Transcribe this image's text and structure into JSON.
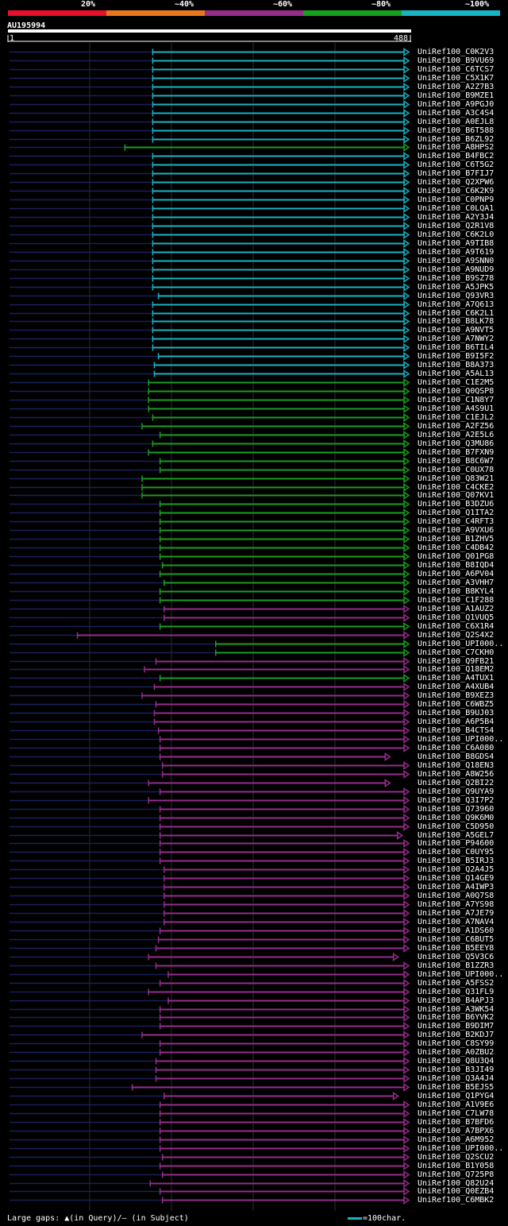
{
  "query": "AU195994",
  "identity_bins": [
    {
      "label": "20%",
      "color": "#e8102a"
    },
    {
      "label": "~40%",
      "color": "#e8781e"
    },
    {
      "label": "~60%",
      "color": "#962d8c"
    },
    {
      "label": "~80%",
      "color": "#19a01e"
    },
    {
      "label": "~100%",
      "color": "#19b4c3"
    }
  ],
  "legend": {
    "gaps": "Large gaps: ▲(in Query)/– (in Subject)",
    "scale": "=100char."
  },
  "chart_data": {
    "type": "alignment",
    "title": "AU195994",
    "xlim": [
      1,
      488
    ],
    "x_tick_labels": [
      "1",
      "488"
    ],
    "colors": {
      "cyan": "#19b4c3",
      "green": "#19a01e",
      "purple": "#962d8c",
      "navy": "#1a1f5a"
    },
    "hits": [
      {
        "name": "UniRef100_C0K2V3",
        "start": 176,
        "end": 488,
        "cat": "cyan",
        "arrow": "right"
      },
      {
        "name": "UniRef100_B9VU69",
        "start": 176,
        "end": 488,
        "cat": "cyan",
        "arrow": "right"
      },
      {
        "name": "UniRef100_C6TCS7",
        "start": 176,
        "end": 488,
        "cat": "cyan",
        "arrow": "right"
      },
      {
        "name": "UniRef100_C5X1K7",
        "start": 176,
        "end": 488,
        "cat": "cyan",
        "arrow": "right"
      },
      {
        "name": "UniRef100_A2Z7B3",
        "start": 176,
        "end": 488,
        "cat": "cyan",
        "arrow": "right"
      },
      {
        "name": "UniRef100_B9MZE1",
        "start": 176,
        "end": 488,
        "cat": "cyan",
        "arrow": "right"
      },
      {
        "name": "UniRef100_A9PGJ0",
        "start": 176,
        "end": 488,
        "cat": "cyan",
        "arrow": "right"
      },
      {
        "name": "UniRef100_A3C4S4",
        "start": 176,
        "end": 488,
        "cat": "cyan",
        "arrow": "right"
      },
      {
        "name": "UniRef100_A0EJL8",
        "start": 176,
        "end": 488,
        "cat": "cyan",
        "arrow": "right"
      },
      {
        "name": "UniRef100_B6T588",
        "start": 176,
        "end": 488,
        "cat": "cyan",
        "arrow": "right"
      },
      {
        "name": "UniRef100_B6ZL92",
        "start": 176,
        "end": 488,
        "cat": "cyan",
        "arrow": "right"
      },
      {
        "name": "UniRef100_A8HPS2",
        "start": 142,
        "end": 488,
        "cat": "green",
        "arrow": "right"
      },
      {
        "name": "UniRef100_B4FBC2",
        "start": 176,
        "end": 488,
        "cat": "cyan",
        "arrow": "right"
      },
      {
        "name": "UniRef100_C6T5G2",
        "start": 176,
        "end": 488,
        "cat": "cyan",
        "arrow": "right"
      },
      {
        "name": "UniRef100_B7FIJ7",
        "start": 176,
        "end": 488,
        "cat": "cyan",
        "arrow": "right"
      },
      {
        "name": "UniRef100_Q2XPW6",
        "start": 176,
        "end": 488,
        "cat": "cyan",
        "arrow": "right"
      },
      {
        "name": "UniRef100_C6K2K9",
        "start": 176,
        "end": 488,
        "cat": "cyan",
        "arrow": "right"
      },
      {
        "name": "UniRef100_C0PNP9",
        "start": 176,
        "end": 488,
        "cat": "cyan",
        "arrow": "right"
      },
      {
        "name": "UniRef100_C0LQA1",
        "start": 176,
        "end": 488,
        "cat": "cyan",
        "arrow": "right"
      },
      {
        "name": "UniRef100_A2Y3J4",
        "start": 176,
        "end": 488,
        "cat": "cyan",
        "arrow": "right"
      },
      {
        "name": "UniRef100_Q2R1V8",
        "start": 176,
        "end": 488,
        "cat": "cyan",
        "arrow": "right"
      },
      {
        "name": "UniRef100_C6K2L0",
        "start": 176,
        "end": 488,
        "cat": "cyan",
        "arrow": "right"
      },
      {
        "name": "UniRef100_A9TIB8",
        "start": 176,
        "end": 488,
        "cat": "cyan",
        "arrow": "right"
      },
      {
        "name": "UniRef100_A9T619",
        "start": 176,
        "end": 488,
        "cat": "cyan",
        "arrow": "right"
      },
      {
        "name": "UniRef100_A9SNN0",
        "start": 176,
        "end": 488,
        "cat": "cyan",
        "arrow": "right"
      },
      {
        "name": "UniRef100_A9NUD9",
        "start": 176,
        "end": 488,
        "cat": "cyan",
        "arrow": "right"
      },
      {
        "name": "UniRef100_B9SZ78",
        "start": 176,
        "end": 488,
        "cat": "cyan",
        "arrow": "right"
      },
      {
        "name": "UniRef100_A5JPK5",
        "start": 176,
        "end": 488,
        "cat": "cyan",
        "arrow": "right"
      },
      {
        "name": "UniRef100_Q93VR3",
        "start": 183,
        "end": 488,
        "cat": "cyan",
        "arrow": "right"
      },
      {
        "name": "UniRef100_A7Q613",
        "start": 176,
        "end": 488,
        "cat": "cyan",
        "arrow": "right"
      },
      {
        "name": "UniRef100_C6K2L1",
        "start": 176,
        "end": 488,
        "cat": "cyan",
        "arrow": "right"
      },
      {
        "name": "UniRef100_B8LK78",
        "start": 176,
        "end": 488,
        "cat": "cyan",
        "arrow": "right"
      },
      {
        "name": "UniRef100_A9NVT5",
        "start": 176,
        "end": 488,
        "cat": "cyan",
        "arrow": "right"
      },
      {
        "name": "UniRef100_A7NWY2",
        "start": 176,
        "end": 488,
        "cat": "cyan",
        "arrow": "right"
      },
      {
        "name": "UniRef100_B6TIL4",
        "start": 176,
        "end": 488,
        "cat": "cyan",
        "arrow": "right"
      },
      {
        "name": "UniRef100_B9I5F2",
        "start": 183,
        "end": 488,
        "cat": "cyan",
        "arrow": "right"
      },
      {
        "name": "UniRef100_B8A373",
        "start": 178,
        "end": 488,
        "cat": "cyan",
        "arrow": "right"
      },
      {
        "name": "UniRef100_A5AL13",
        "start": 178,
        "end": 488,
        "cat": "cyan",
        "arrow": "right"
      },
      {
        "name": "UniRef100_C1E2M5",
        "start": 171,
        "end": 488,
        "cat": "green",
        "arrow": "right"
      },
      {
        "name": "UniRef100_Q0QSP8",
        "start": 171,
        "end": 488,
        "cat": "green",
        "arrow": "right"
      },
      {
        "name": "UniRef100_C1N8Y7",
        "start": 171,
        "end": 488,
        "cat": "green",
        "arrow": "right"
      },
      {
        "name": "UniRef100_A4S9U1",
        "start": 171,
        "end": 488,
        "cat": "green",
        "arrow": "right"
      },
      {
        "name": "UniRef100_C1EJL2",
        "start": 176,
        "end": 488,
        "cat": "green",
        "arrow": "right"
      },
      {
        "name": "UniRef100_A2FZ56",
        "start": 163,
        "end": 488,
        "cat": "green",
        "arrow": "right"
      },
      {
        "name": "UniRef100_A2E5L6",
        "start": 185,
        "end": 488,
        "cat": "green",
        "arrow": "right"
      },
      {
        "name": "UniRef100_Q3MU86",
        "start": 176,
        "end": 488,
        "cat": "green",
        "arrow": "right"
      },
      {
        "name": "UniRef100_B7FXN9",
        "start": 171,
        "end": 488,
        "cat": "green",
        "arrow": "right"
      },
      {
        "name": "UniRef100_B8C6W7",
        "start": 185,
        "end": 488,
        "cat": "green",
        "arrow": "right"
      },
      {
        "name": "UniRef100_C0UX78",
        "start": 185,
        "end": 488,
        "cat": "green",
        "arrow": "right"
      },
      {
        "name": "UniRef100_Q83W21",
        "start": 163,
        "end": 488,
        "cat": "green",
        "arrow": "right"
      },
      {
        "name": "UniRef100_C4CKE2",
        "start": 163,
        "end": 488,
        "cat": "green",
        "arrow": "right"
      },
      {
        "name": "UniRef100_Q07KV1",
        "start": 163,
        "end": 488,
        "cat": "green",
        "arrow": "right"
      },
      {
        "name": "UniRef100_B3DZU6",
        "start": 185,
        "end": 488,
        "cat": "green",
        "arrow": "right"
      },
      {
        "name": "UniRef100_Q1ITA2",
        "start": 185,
        "end": 488,
        "cat": "green",
        "arrow": "right"
      },
      {
        "name": "UniRef100_C4RFT3",
        "start": 185,
        "end": 488,
        "cat": "green",
        "arrow": "right"
      },
      {
        "name": "UniRef100_A9VXU6",
        "start": 185,
        "end": 488,
        "cat": "green",
        "arrow": "right"
      },
      {
        "name": "UniRef100_B1ZHV5",
        "start": 185,
        "end": 488,
        "cat": "green",
        "arrow": "right"
      },
      {
        "name": "UniRef100_C4DB42",
        "start": 185,
        "end": 488,
        "cat": "green",
        "arrow": "right"
      },
      {
        "name": "UniRef100_Q01PG8",
        "start": 185,
        "end": 488,
        "cat": "green",
        "arrow": "right"
      },
      {
        "name": "UniRef100_B8IQD4",
        "start": 188,
        "end": 488,
        "cat": "green",
        "arrow": "right"
      },
      {
        "name": "UniRef100_A6PV04",
        "start": 185,
        "end": 488,
        "cat": "green",
        "arrow": "right"
      },
      {
        "name": "UniRef100_A3VHH7",
        "start": 190,
        "end": 488,
        "cat": "green",
        "arrow": "right"
      },
      {
        "name": "UniRef100_B8KYL4",
        "start": 185,
        "end": 488,
        "cat": "green",
        "arrow": "right"
      },
      {
        "name": "UniRef100_C1F288",
        "start": 185,
        "end": 488,
        "cat": "green",
        "arrow": "right"
      },
      {
        "name": "UniRef100_A1AUZ2",
        "start": 190,
        "end": 488,
        "cat": "purple",
        "arrow": "right"
      },
      {
        "name": "UniRef100_Q1VUQ5",
        "start": 190,
        "end": 488,
        "cat": "purple",
        "arrow": "right"
      },
      {
        "name": "UniRef100_C6X1R4",
        "start": 185,
        "end": 488,
        "cat": "green",
        "arrow": "right"
      },
      {
        "name": "UniRef100_Q2S4X2",
        "start": 84,
        "end": 488,
        "cat": "purple",
        "arrow": "right"
      },
      {
        "name": "UniRef100_UPI000..",
        "start": 253,
        "end": 488,
        "cat": "green",
        "arrow": "right"
      },
      {
        "name": "UniRef100_C7CKH0",
        "start": 253,
        "end": 488,
        "cat": "green",
        "arrow": "right"
      },
      {
        "name": "UniRef100_Q9FB21",
        "start": 180,
        "end": 488,
        "cat": "purple",
        "arrow": "right"
      },
      {
        "name": "UniRef100_Q18EM2",
        "start": 166,
        "end": 488,
        "cat": "purple",
        "arrow": "right"
      },
      {
        "name": "UniRef100_A4TUX1",
        "start": 185,
        "end": 488,
        "cat": "green",
        "arrow": "right"
      },
      {
        "name": "UniRef100_A4XUB4",
        "start": 178,
        "end": 488,
        "cat": "purple",
        "arrow": "right"
      },
      {
        "name": "UniRef100_B9XEZ3",
        "start": 163,
        "end": 488,
        "cat": "purple",
        "arrow": "right"
      },
      {
        "name": "UniRef100_C6WBZ5",
        "start": 180,
        "end": 488,
        "cat": "purple",
        "arrow": "right"
      },
      {
        "name": "UniRef100_B9UJ03",
        "start": 178,
        "end": 488,
        "cat": "purple",
        "arrow": "right"
      },
      {
        "name": "UniRef100_A6P5B4",
        "start": 178,
        "end": 488,
        "cat": "purple",
        "arrow": "right"
      },
      {
        "name": "UniRef100_B4CTS4",
        "start": 183,
        "end": 488,
        "cat": "purple",
        "arrow": "right"
      },
      {
        "name": "UniRef100_UPI000..",
        "start": 185,
        "end": 488,
        "cat": "purple",
        "arrow": "right"
      },
      {
        "name": "UniRef100_C6A080",
        "start": 185,
        "end": 488,
        "cat": "purple",
        "arrow": "right"
      },
      {
        "name": "UniRef100_B8GDS4",
        "start": 185,
        "end": 465,
        "cat": "purple",
        "arrow": "right"
      },
      {
        "name": "UniRef100_Q18EN3",
        "start": 188,
        "end": 488,
        "cat": "purple",
        "arrow": "right"
      },
      {
        "name": "UniRef100_A8W256",
        "start": 188,
        "end": 488,
        "cat": "purple",
        "arrow": "right"
      },
      {
        "name": "UniRef100_Q2BI22",
        "start": 171,
        "end": 465,
        "cat": "purple",
        "arrow": "right"
      },
      {
        "name": "UniRef100_Q9UYA9",
        "start": 185,
        "end": 488,
        "cat": "purple",
        "arrow": "right"
      },
      {
        "name": "UniRef100_Q3I7P2",
        "start": 171,
        "end": 488,
        "cat": "purple",
        "arrow": "right"
      },
      {
        "name": "UniRef100_Q73960",
        "start": 185,
        "end": 488,
        "cat": "purple",
        "arrow": "right"
      },
      {
        "name": "UniRef100_Q9K6M0",
        "start": 185,
        "end": 488,
        "cat": "purple",
        "arrow": "right"
      },
      {
        "name": "UniRef100_C5D950",
        "start": 185,
        "end": 488,
        "cat": "purple",
        "arrow": "right"
      },
      {
        "name": "UniRef100_A5GEL7",
        "start": 185,
        "end": 480,
        "cat": "purple",
        "arrow": "right"
      },
      {
        "name": "UniRef100_P94600",
        "start": 185,
        "end": 488,
        "cat": "purple",
        "arrow": "right"
      },
      {
        "name": "UniRef100_C0UY95",
        "start": 185,
        "end": 488,
        "cat": "purple",
        "arrow": "right"
      },
      {
        "name": "UniRef100_B5IRJ3",
        "start": 185,
        "end": 488,
        "cat": "purple",
        "arrow": "right"
      },
      {
        "name": "UniRef100_Q2A4J5",
        "start": 190,
        "end": 488,
        "cat": "purple",
        "arrow": "right"
      },
      {
        "name": "UniRef100_Q14GE9",
        "start": 190,
        "end": 488,
        "cat": "purple",
        "arrow": "right"
      },
      {
        "name": "UniRef100_A4IWP3",
        "start": 190,
        "end": 488,
        "cat": "purple",
        "arrow": "right"
      },
      {
        "name": "UniRef100_A0Q7S8",
        "start": 190,
        "end": 488,
        "cat": "purple",
        "arrow": "right"
      },
      {
        "name": "UniRef100_A7YS98",
        "start": 190,
        "end": 488,
        "cat": "purple",
        "arrow": "right"
      },
      {
        "name": "UniRef100_A7JE79",
        "start": 190,
        "end": 488,
        "cat": "purple",
        "arrow": "right"
      },
      {
        "name": "UniRef100_A7NAV4",
        "start": 190,
        "end": 488,
        "cat": "purple",
        "arrow": "right"
      },
      {
        "name": "UniRef100_A1DS60",
        "start": 185,
        "end": 488,
        "cat": "purple",
        "arrow": "right"
      },
      {
        "name": "UniRef100_C6BUT5",
        "start": 183,
        "end": 488,
        "cat": "purple",
        "arrow": "right"
      },
      {
        "name": "UniRef100_B5EEY8",
        "start": 180,
        "end": 488,
        "cat": "purple",
        "arrow": "right"
      },
      {
        "name": "UniRef100_Q5V3C6",
        "start": 171,
        "end": 475,
        "cat": "purple",
        "arrow": "right"
      },
      {
        "name": "UniRef100_B1ZZR3",
        "start": 180,
        "end": 488,
        "cat": "purple",
        "arrow": "right"
      },
      {
        "name": "UniRef100_UPI000..",
        "start": 195,
        "end": 488,
        "cat": "purple",
        "arrow": "right"
      },
      {
        "name": "UniRef100_A5FSS2",
        "start": 185,
        "end": 488,
        "cat": "purple",
        "arrow": "right"
      },
      {
        "name": "UniRef100_Q31FL9",
        "start": 171,
        "end": 488,
        "cat": "purple",
        "arrow": "right"
      },
      {
        "name": "UniRef100_B4APJ3",
        "start": 195,
        "end": 488,
        "cat": "purple",
        "arrow": "right"
      },
      {
        "name": "UniRef100_A3WK54",
        "start": 185,
        "end": 488,
        "cat": "purple",
        "arrow": "right"
      },
      {
        "name": "UniRef100_B6YVK2",
        "start": 185,
        "end": 488,
        "cat": "purple",
        "arrow": "right"
      },
      {
        "name": "UniRef100_B9DIM7",
        "start": 185,
        "end": 488,
        "cat": "purple",
        "arrow": "right"
      },
      {
        "name": "UniRef100_B2KDJ7",
        "start": 163,
        "end": 488,
        "cat": "purple",
        "arrow": "right"
      },
      {
        "name": "UniRef100_C8SY99",
        "start": 185,
        "end": 488,
        "cat": "purple",
        "arrow": "right"
      },
      {
        "name": "UniRef100_A0ZBU2",
        "start": 185,
        "end": 488,
        "cat": "purple",
        "arrow": "right"
      },
      {
        "name": "UniRef100_Q8U3Q4",
        "start": 180,
        "end": 488,
        "cat": "purple",
        "arrow": "right"
      },
      {
        "name": "UniRef100_B3JI49",
        "start": 180,
        "end": 488,
        "cat": "purple",
        "arrow": "right"
      },
      {
        "name": "UniRef100_Q3A4J4",
        "start": 180,
        "end": 488,
        "cat": "purple",
        "arrow": "right"
      },
      {
        "name": "UniRef100_B5EJS5",
        "start": 151,
        "end": 488,
        "cat": "purple",
        "arrow": "right"
      },
      {
        "name": "UniRef100_Q1PYG4",
        "start": 190,
        "end": 475,
        "cat": "purple",
        "arrow": "right"
      },
      {
        "name": "UniRef100_A1V9E6",
        "start": 185,
        "end": 488,
        "cat": "purple",
        "arrow": "right"
      },
      {
        "name": "UniRef100_C7LW78",
        "start": 185,
        "end": 488,
        "cat": "purple",
        "arrow": "right"
      },
      {
        "name": "UniRef100_B7BFD6",
        "start": 185,
        "end": 488,
        "cat": "purple",
        "arrow": "right"
      },
      {
        "name": "UniRef100_A7BPX6",
        "start": 185,
        "end": 488,
        "cat": "purple",
        "arrow": "right"
      },
      {
        "name": "UniRef100_A6M952",
        "start": 185,
        "end": 488,
        "cat": "purple",
        "arrow": "right"
      },
      {
        "name": "UniRef100_UPI000..",
        "start": 185,
        "end": 488,
        "cat": "purple",
        "arrow": "right"
      },
      {
        "name": "UniRef100_Q2SCU2",
        "start": 188,
        "end": 488,
        "cat": "purple",
        "arrow": "right"
      },
      {
        "name": "UniRef100_B1Y058",
        "start": 185,
        "end": 488,
        "cat": "purple",
        "arrow": "right"
      },
      {
        "name": "UniRef100_Q725P8",
        "start": 188,
        "end": 488,
        "cat": "purple",
        "arrow": "right"
      },
      {
        "name": "UniRef100_Q82U24",
        "start": 173,
        "end": 488,
        "cat": "purple",
        "arrow": "right"
      },
      {
        "name": "UniRef100_Q0EZB4",
        "start": 185,
        "end": 488,
        "cat": "purple",
        "arrow": "right"
      },
      {
        "name": "UniRef100_C6MBK2",
        "start": 188,
        "end": 488,
        "cat": "purple",
        "arrow": "right"
      }
    ]
  }
}
